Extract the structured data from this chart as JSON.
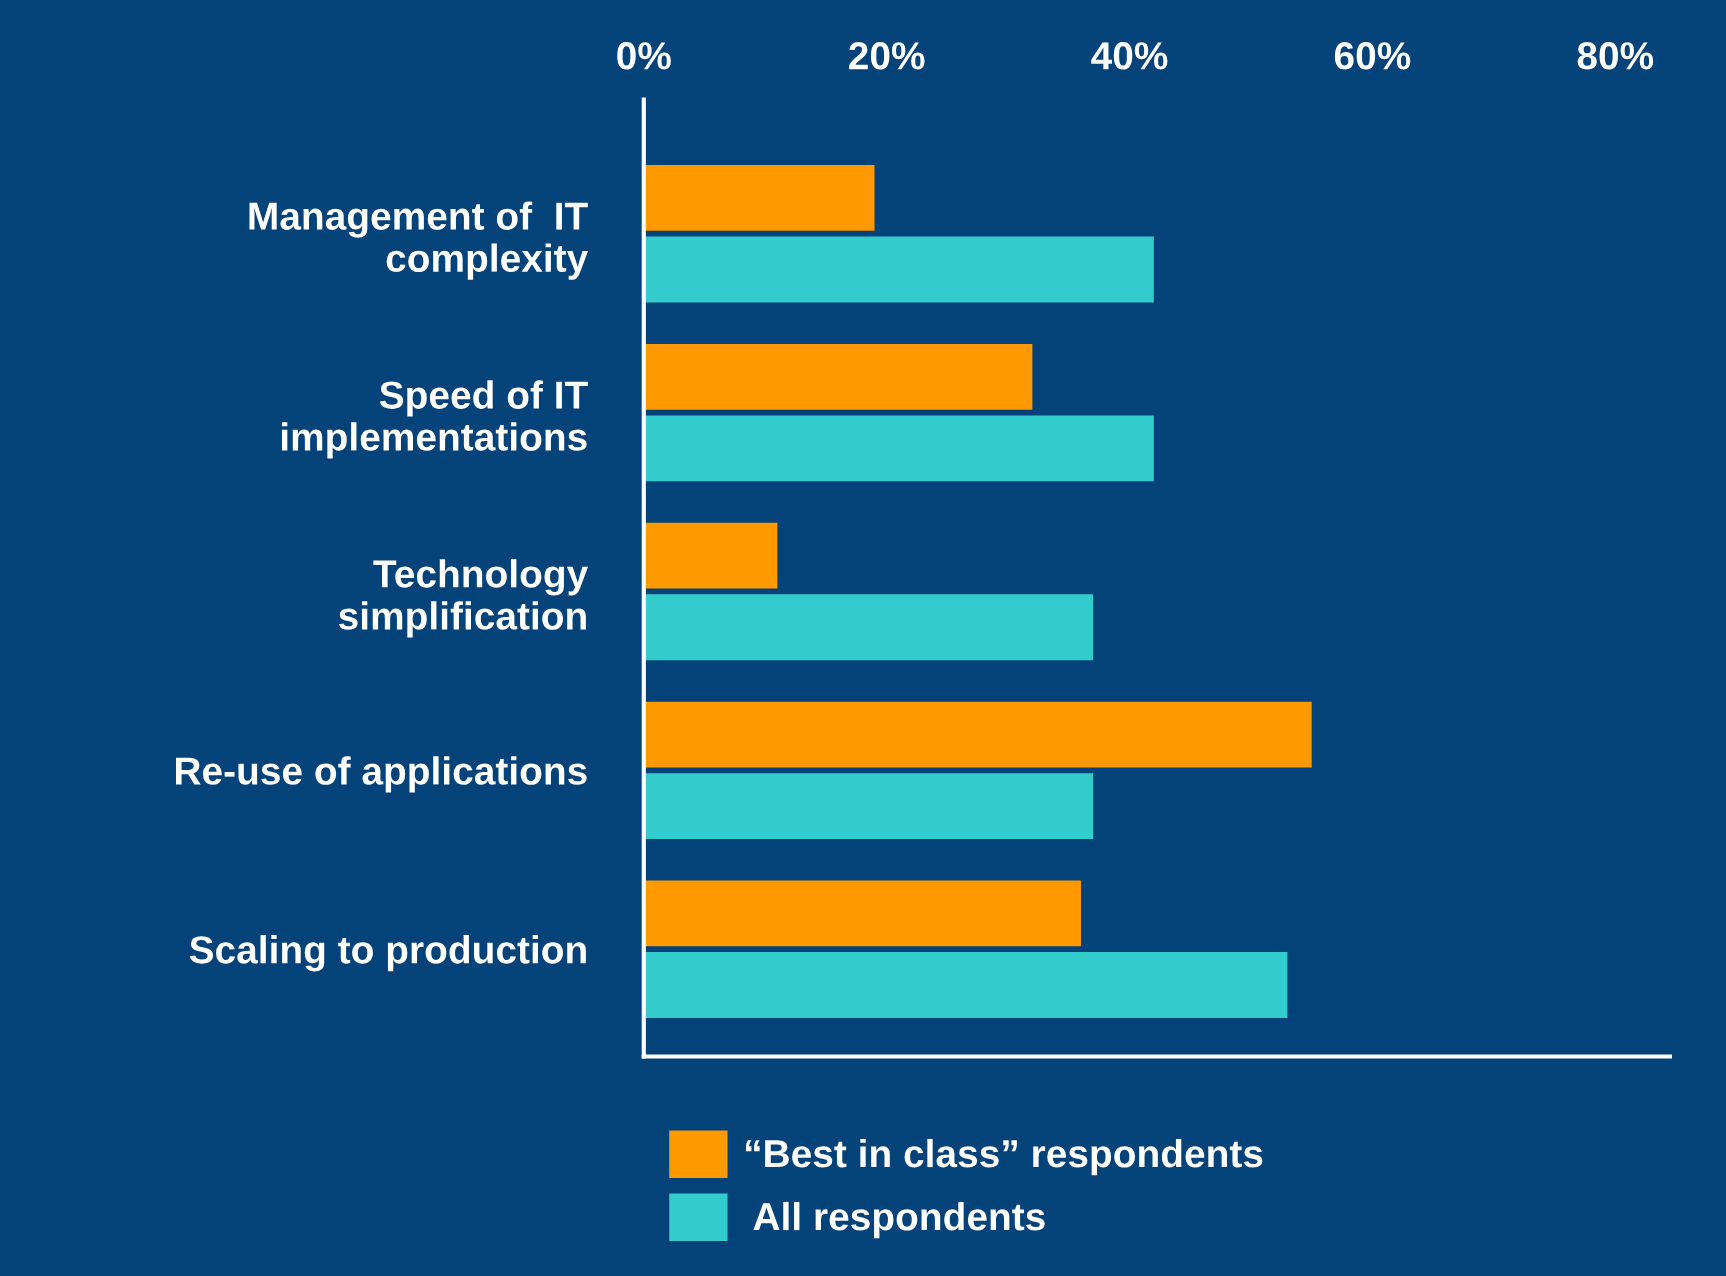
{
  "chart_data": {
    "type": "bar",
    "orientation": "horizontal",
    "categories": [
      "Management of  IT\ncomplexity",
      "Speed of IT\nimplementations",
      "Technology\nsimplification",
      "Re-use of applications",
      "Scaling to production"
    ],
    "series": [
      {
        "name": "“Best in class” respondents",
        "color": "#ff9900",
        "values": [
          19,
          32,
          11,
          55,
          36
        ]
      },
      {
        "name": " All respondents",
        "color": "#33cccc",
        "values": [
          42,
          42,
          37,
          37,
          53
        ]
      }
    ],
    "xlim": [
      0,
      84.5
    ],
    "xticks": [
      {
        "value": 0,
        "label": "0%"
      },
      {
        "value": 20,
        "label": "20%"
      },
      {
        "value": 40,
        "label": "40%"
      },
      {
        "value": 60,
        "label": "60%"
      },
      {
        "value": 80,
        "label": "80%"
      }
    ],
    "grid": false,
    "legend": "bottom"
  }
}
